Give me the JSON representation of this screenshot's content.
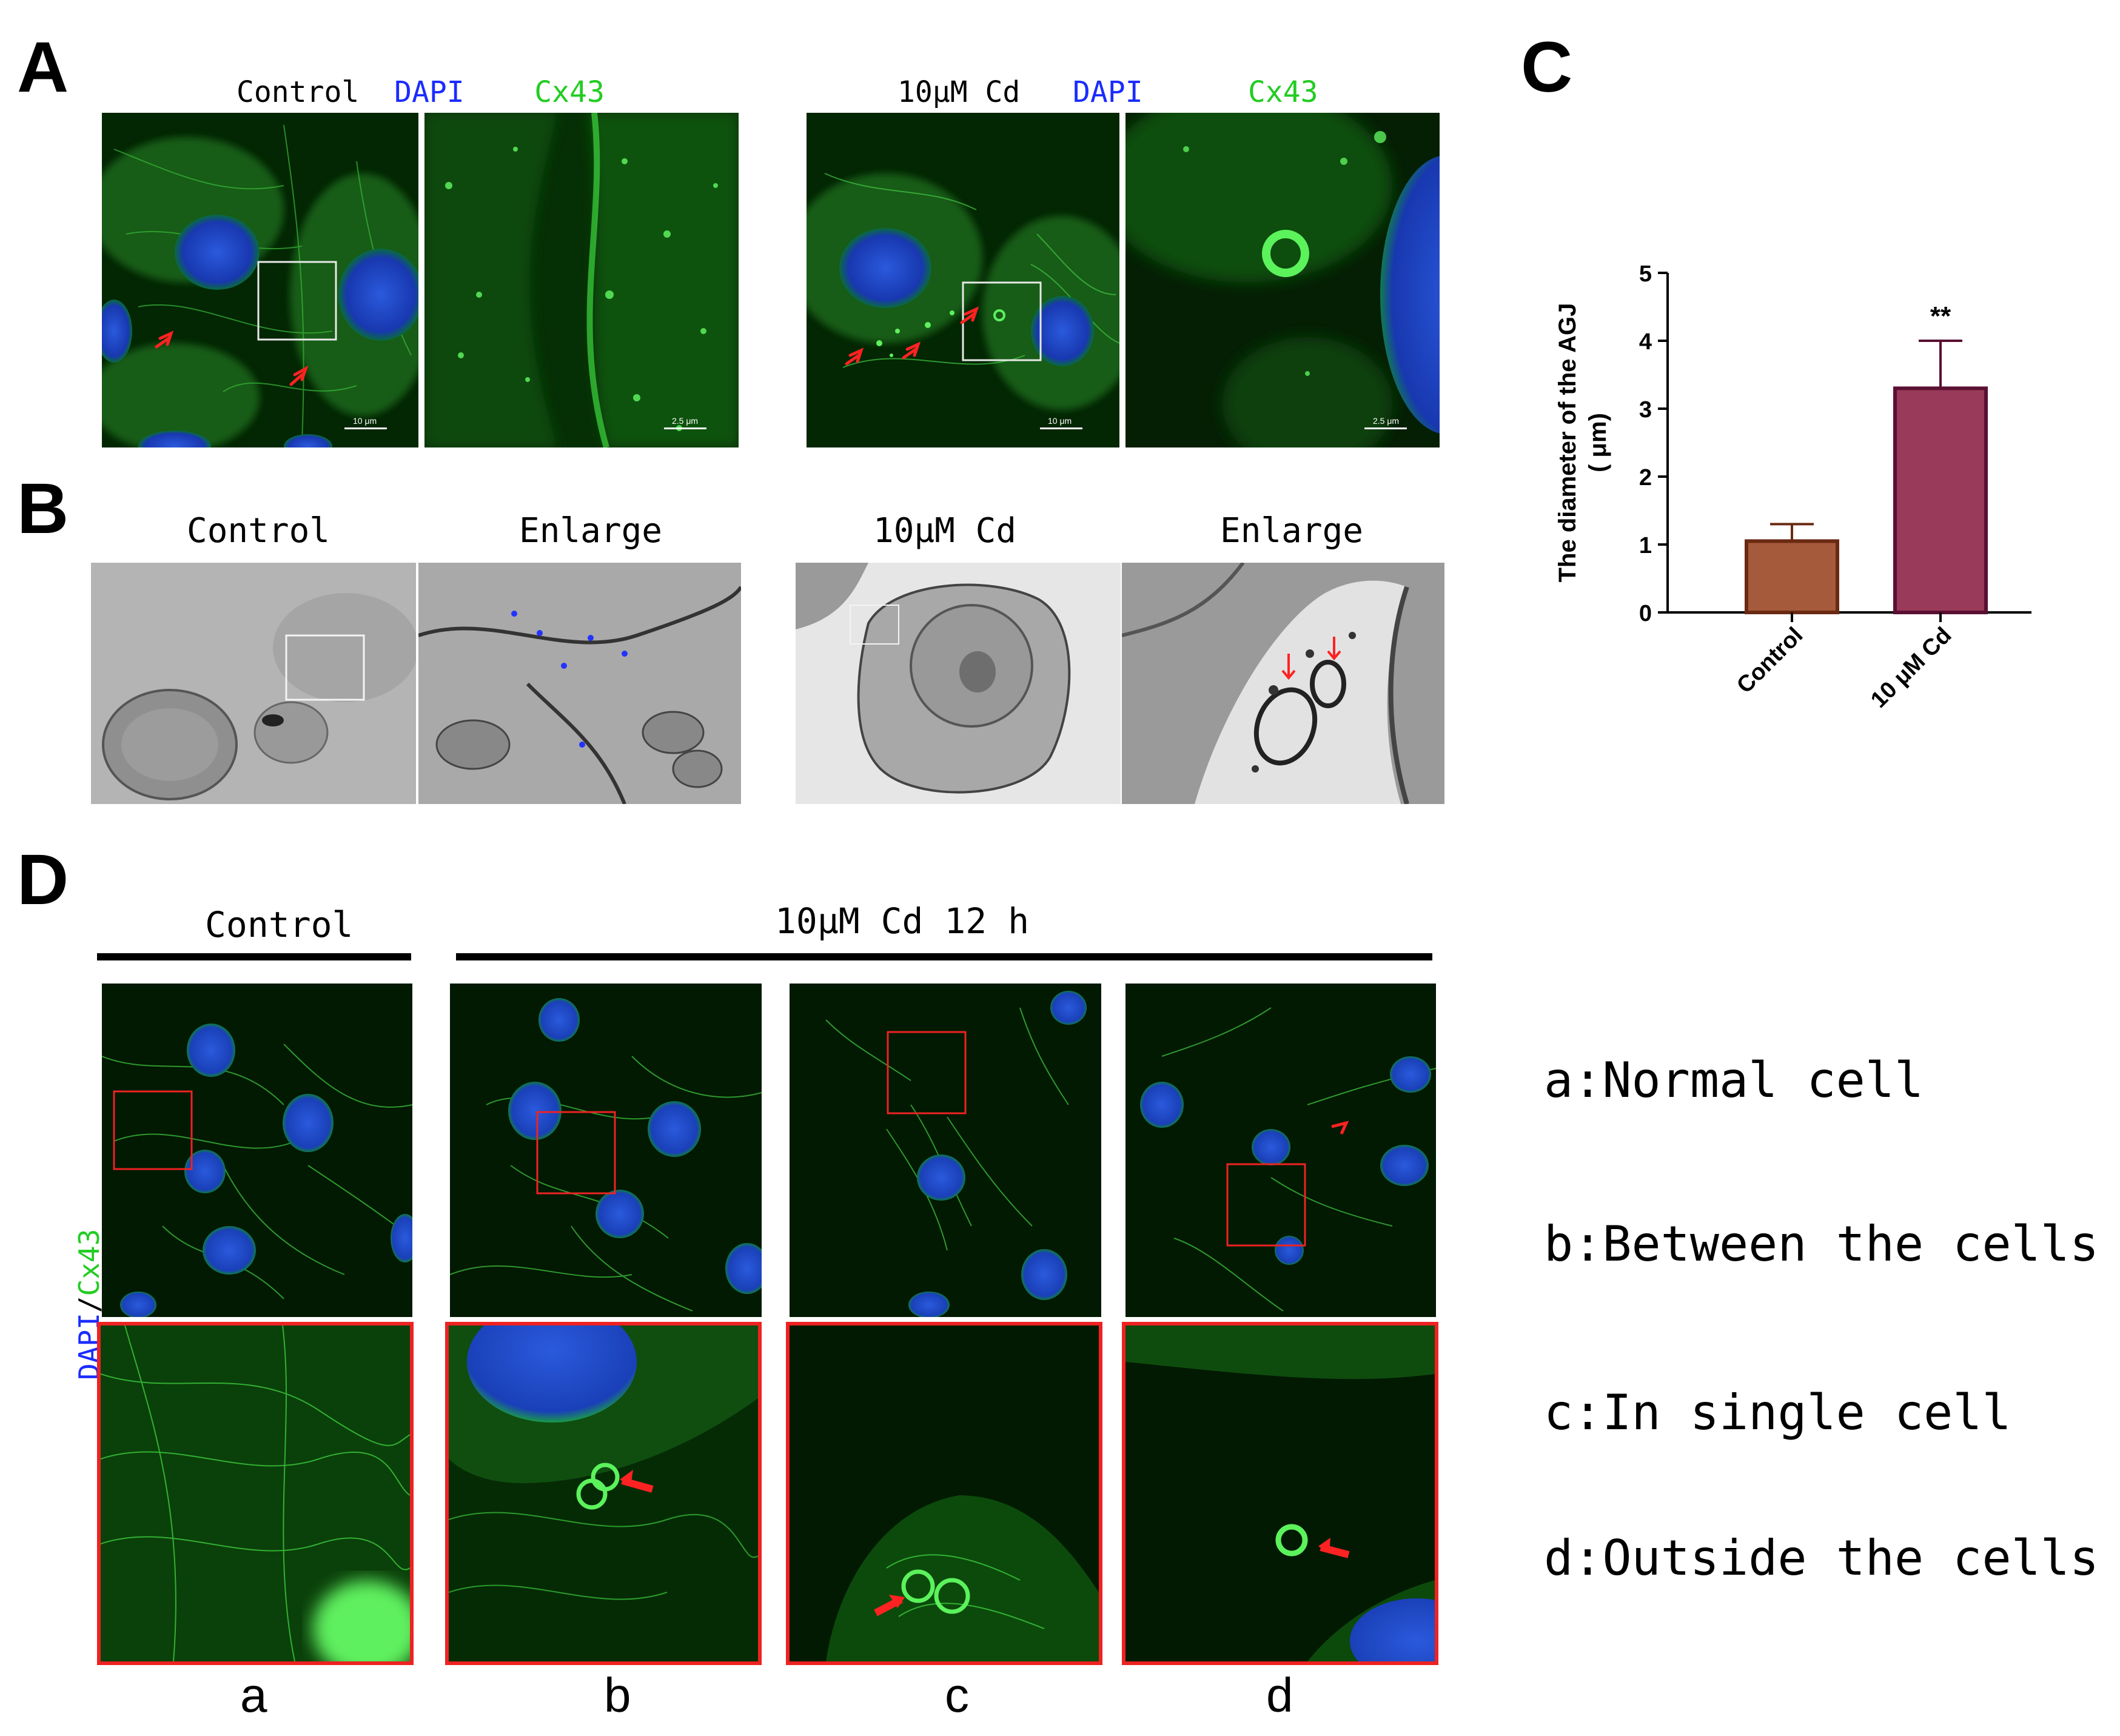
{
  "colors": {
    "dapi": "#1a2cff",
    "cx43": "#22dd22",
    "red_box": "#ee2222",
    "control_bar": "#a65a3c",
    "cd_bar": "#9a3a5a"
  },
  "panel_a": {
    "label": "A",
    "control": {
      "name": "Control",
      "dapi": "DAPI",
      "cx43": "Cx43"
    },
    "cd": {
      "name": "10μM Cd",
      "dapi": "DAPI",
      "cx43": "Cx43"
    },
    "scale_large": "10 μm",
    "scale_zoom": "2.5 μm"
  },
  "panel_b": {
    "label": "B",
    "headers": [
      "Control",
      "Enlarge",
      "10μM Cd",
      "Enlarge"
    ]
  },
  "panel_c": {
    "label": "C"
  },
  "panel_d": {
    "label": "D",
    "control_header": "Control",
    "cd_header": "10μM Cd 12 h",
    "stain_dapi": "DAPI",
    "stain_sep": "/",
    "stain_cx43": "Cx43",
    "sub_labels": [
      "a",
      "b",
      "c",
      "d"
    ]
  },
  "legend": [
    {
      "key": "a:",
      "text": "Normal cell"
    },
    {
      "key": "b:",
      "text": "Between the cells"
    },
    {
      "key": "c:",
      "text": "In single cell"
    },
    {
      "key": "d:",
      "text": "Outside the cells"
    }
  ],
  "chart_data": {
    "type": "bar",
    "categories": [
      "Control",
      "10 μM Cd"
    ],
    "values": [
      1.05,
      3.3
    ],
    "errors": [
      0.25,
      0.7
    ],
    "ylabel_line1": "The diameter of the AGJ",
    "ylabel_line2": "( μm)",
    "ylim": [
      0,
      5
    ],
    "yticks": [
      "0",
      "1",
      "2",
      "3",
      "4",
      "5"
    ],
    "annotation": "**",
    "grid": false
  }
}
